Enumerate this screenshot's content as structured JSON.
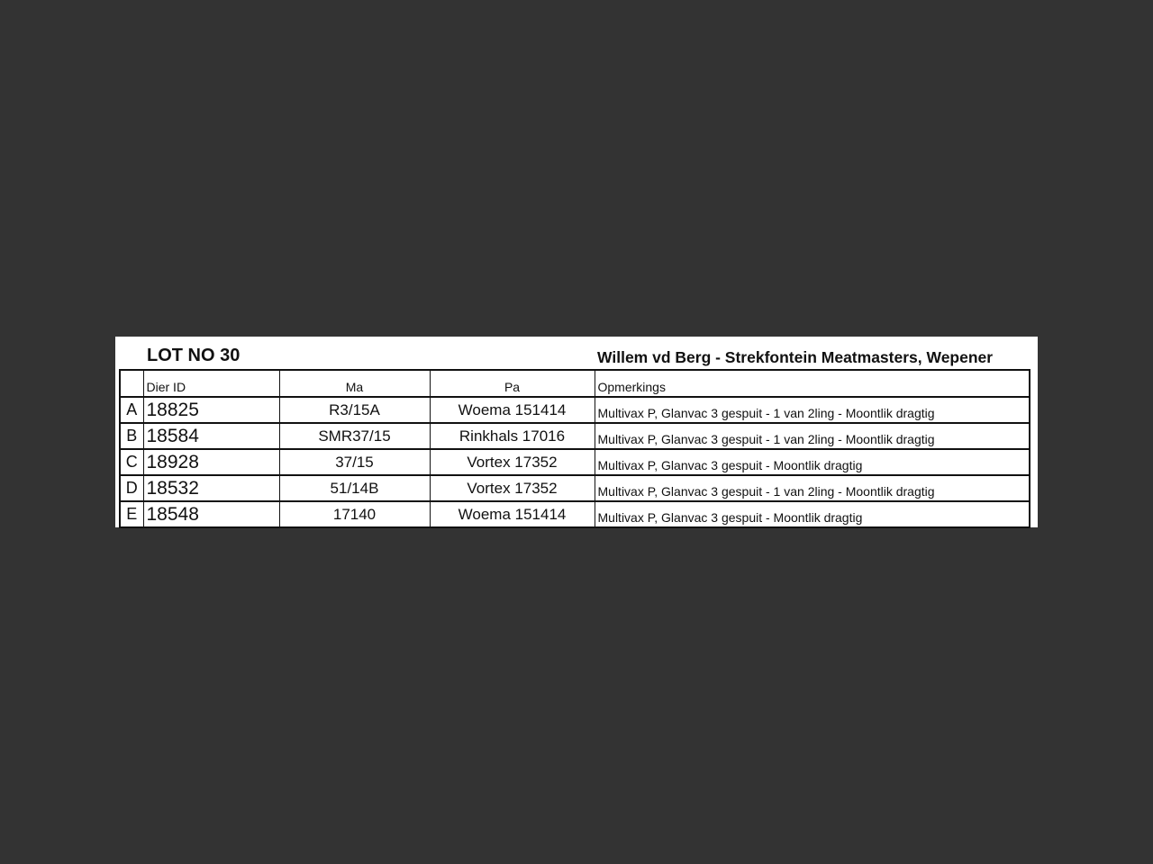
{
  "title": "LOT NO 30",
  "owner": "Willem vd Berg - Strekfontein Meatmasters, Wepener",
  "columns": [
    "",
    "Dier ID",
    "Ma",
    "Pa",
    "Opmerkings"
  ],
  "rows": [
    {
      "letter": "A",
      "id": "18825",
      "ma": "R3/15A",
      "pa": "Woema 151414",
      "remarks": "Multivax P, Glanvac 3 gespuit  - 1 van 2ling - Moontlik dragtig"
    },
    {
      "letter": "B",
      "id": "18584",
      "ma": "SMR37/15",
      "pa": "Rinkhals 17016",
      "remarks": "Multivax P, Glanvac 3 gespuit  - 1 van 2ling - Moontlik dragtig"
    },
    {
      "letter": "C",
      "id": "18928",
      "ma": "37/15",
      "pa": "Vortex 17352",
      "remarks": "Multivax P, Glanvac 3 gespuit - Moontlik dragtig"
    },
    {
      "letter": "D",
      "id": "18532",
      "ma": "51/14B",
      "pa": "Vortex 17352",
      "remarks": "Multivax P, Glanvac 3 gespuit  - 1 van 2ling - Moontlik dragtig"
    },
    {
      "letter": "E",
      "id": "18548",
      "ma": "17140",
      "pa": "Woema 151414",
      "remarks": "Multivax P, Glanvac 3 gespuit - Moontlik dragtig"
    }
  ]
}
